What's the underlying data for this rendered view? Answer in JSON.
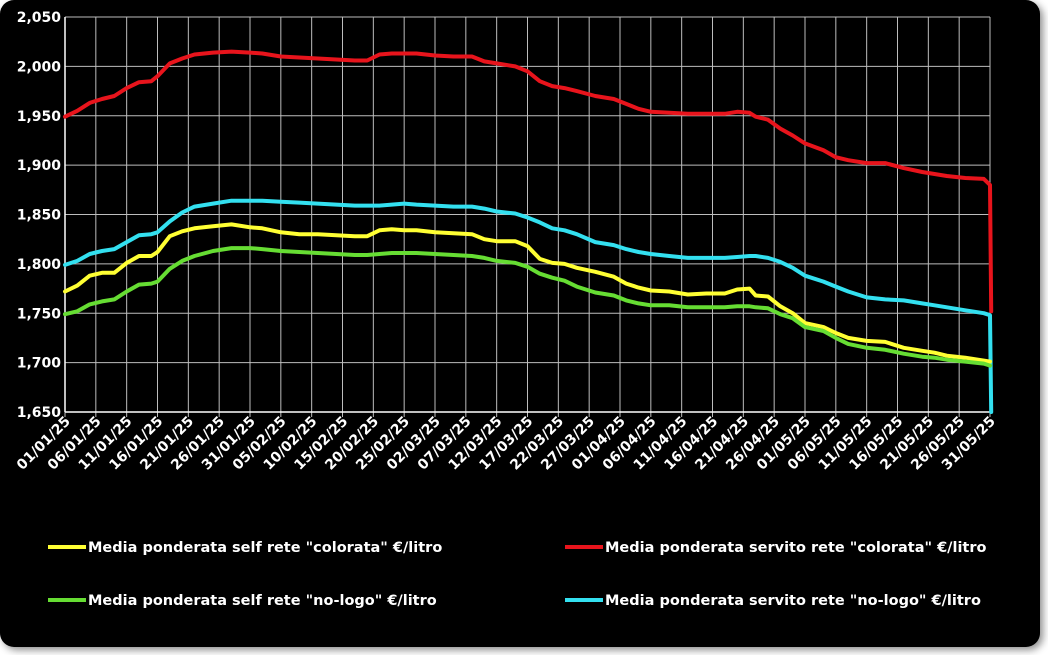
{
  "chart_data": {
    "type": "line",
    "title": "",
    "xlabel": "",
    "ylabel": "",
    "ylim": [
      1.65,
      2.05
    ],
    "grid": true,
    "legend_position": "bottom",
    "y_ticks": [
      "1,650",
      "1,700",
      "1,750",
      "1,800",
      "1,850",
      "1,900",
      "1,950",
      "2,000",
      "2,050"
    ],
    "x_ticks": [
      "01/01/25",
      "06/01/25",
      "11/01/25",
      "16/01/25",
      "21/01/25",
      "26/01/25",
      "31/01/25",
      "05/02/25",
      "10/02/25",
      "15/02/25",
      "20/02/25",
      "25/02/25",
      "02/03/25",
      "07/03/25",
      "12/03/25",
      "17/03/25",
      "22/03/25",
      "27/03/25",
      "01/04/25",
      "06/04/25",
      "11/04/25",
      "16/04/25",
      "21/04/25",
      "26/04/25",
      "01/05/25",
      "06/05/25",
      "11/05/25",
      "16/05/25",
      "21/05/25",
      "26/05/25",
      "31/05/25"
    ],
    "x_day_range": [
      0,
      150
    ],
    "series": [
      {
        "name": "Media ponderata self rete \"colorata\" €/litro",
        "color": "#ffff33",
        "points": [
          [
            0,
            1.772
          ],
          [
            2,
            1.778
          ],
          [
            4,
            1.788
          ],
          [
            6,
            1.791
          ],
          [
            8,
            1.791
          ],
          [
            10,
            1.801
          ],
          [
            12,
            1.808
          ],
          [
            14,
            1.808
          ],
          [
            15,
            1.812
          ],
          [
            17,
            1.828
          ],
          [
            19,
            1.833
          ],
          [
            21,
            1.836
          ],
          [
            24,
            1.838
          ],
          [
            27,
            1.84
          ],
          [
            30,
            1.837
          ],
          [
            32,
            1.836
          ],
          [
            35,
            1.832
          ],
          [
            38,
            1.83
          ],
          [
            41,
            1.83
          ],
          [
            44,
            1.829
          ],
          [
            47,
            1.828
          ],
          [
            49,
            1.828
          ],
          [
            51,
            1.834
          ],
          [
            53,
            1.835
          ],
          [
            55,
            1.834
          ],
          [
            57,
            1.834
          ],
          [
            60,
            1.832
          ],
          [
            63,
            1.831
          ],
          [
            66,
            1.83
          ],
          [
            68,
            1.825
          ],
          [
            70,
            1.823
          ],
          [
            73,
            1.823
          ],
          [
            75,
            1.818
          ],
          [
            77,
            1.805
          ],
          [
            79,
            1.801
          ],
          [
            81,
            1.8
          ],
          [
            83,
            1.796
          ],
          [
            86,
            1.792
          ],
          [
            89,
            1.787
          ],
          [
            91,
            1.78
          ],
          [
            93,
            1.776
          ],
          [
            95,
            1.773
          ],
          [
            98,
            1.772
          ],
          [
            101,
            1.769
          ],
          [
            104,
            1.77
          ],
          [
            107,
            1.77
          ],
          [
            109,
            1.774
          ],
          [
            111,
            1.775
          ],
          [
            112,
            1.768
          ],
          [
            114,
            1.767
          ],
          [
            116,
            1.757
          ],
          [
            118,
            1.75
          ],
          [
            120,
            1.74
          ],
          [
            123,
            1.736
          ],
          [
            125,
            1.73
          ],
          [
            127,
            1.725
          ],
          [
            130,
            1.722
          ],
          [
            133,
            1.721
          ],
          [
            136,
            1.715
          ],
          [
            139,
            1.712
          ],
          [
            141,
            1.71
          ],
          [
            143,
            1.707
          ],
          [
            146,
            1.705
          ],
          [
            149,
            1.702
          ],
          [
            150,
            1.701
          ]
        ]
      },
      {
        "name": "Media ponderata servito rete \"colorata\" €/litro",
        "color": "#e8141c",
        "points": [
          [
            0,
            1.949
          ],
          [
            2,
            1.955
          ],
          [
            4,
            1.963
          ],
          [
            6,
            1.967
          ],
          [
            8,
            1.97
          ],
          [
            10,
            1.978
          ],
          [
            12,
            1.984
          ],
          [
            14,
            1.985
          ],
          [
            15,
            1.99
          ],
          [
            17,
            2.003
          ],
          [
            19,
            2.008
          ],
          [
            21,
            2.012
          ],
          [
            24,
            2.014
          ],
          [
            27,
            2.015
          ],
          [
            30,
            2.014
          ],
          [
            32,
            2.013
          ],
          [
            35,
            2.01
          ],
          [
            38,
            2.009
          ],
          [
            41,
            2.008
          ],
          [
            44,
            2.007
          ],
          [
            47,
            2.006
          ],
          [
            49,
            2.006
          ],
          [
            51,
            2.012
          ],
          [
            53,
            2.013
          ],
          [
            55,
            2.013
          ],
          [
            57,
            2.013
          ],
          [
            60,
            2.011
          ],
          [
            63,
            2.01
          ],
          [
            66,
            2.01
          ],
          [
            68,
            2.005
          ],
          [
            70,
            2.003
          ],
          [
            73,
            2.0
          ],
          [
            75,
            1.995
          ],
          [
            77,
            1.985
          ],
          [
            79,
            1.98
          ],
          [
            81,
            1.978
          ],
          [
            83,
            1.975
          ],
          [
            86,
            1.97
          ],
          [
            89,
            1.967
          ],
          [
            91,
            1.962
          ],
          [
            93,
            1.957
          ],
          [
            95,
            1.954
          ],
          [
            98,
            1.953
          ],
          [
            101,
            1.952
          ],
          [
            104,
            1.952
          ],
          [
            107,
            1.952
          ],
          [
            109,
            1.954
          ],
          [
            111,
            1.953
          ],
          [
            112,
            1.949
          ],
          [
            114,
            1.946
          ],
          [
            116,
            1.937
          ],
          [
            118,
            1.93
          ],
          [
            120,
            1.922
          ],
          [
            123,
            1.915
          ],
          [
            125,
            1.908
          ],
          [
            127,
            1.905
          ],
          [
            130,
            1.902
          ],
          [
            133,
            1.902
          ],
          [
            136,
            1.897
          ],
          [
            139,
            1.893
          ],
          [
            141,
            1.891
          ],
          [
            143,
            1.889
          ],
          [
            146,
            1.887
          ],
          [
            149,
            1.886
          ],
          [
            150,
            1.88
          ],
          [
            150.2,
            1.752
          ]
        ]
      },
      {
        "name": "Media ponderata self rete \"no-logo\" €/litro",
        "color": "#66dd33",
        "points": [
          [
            0,
            1.749
          ],
          [
            2,
            1.752
          ],
          [
            4,
            1.759
          ],
          [
            6,
            1.762
          ],
          [
            8,
            1.764
          ],
          [
            10,
            1.772
          ],
          [
            12,
            1.779
          ],
          [
            14,
            1.78
          ],
          [
            15,
            1.782
          ],
          [
            17,
            1.795
          ],
          [
            19,
            1.803
          ],
          [
            21,
            1.808
          ],
          [
            24,
            1.813
          ],
          [
            27,
            1.816
          ],
          [
            30,
            1.816
          ],
          [
            32,
            1.815
          ],
          [
            35,
            1.813
          ],
          [
            38,
            1.812
          ],
          [
            41,
            1.811
          ],
          [
            44,
            1.81
          ],
          [
            47,
            1.809
          ],
          [
            49,
            1.809
          ],
          [
            51,
            1.81
          ],
          [
            53,
            1.811
          ],
          [
            55,
            1.811
          ],
          [
            57,
            1.811
          ],
          [
            60,
            1.81
          ],
          [
            63,
            1.809
          ],
          [
            66,
            1.808
          ],
          [
            68,
            1.806
          ],
          [
            70,
            1.803
          ],
          [
            73,
            1.801
          ],
          [
            75,
            1.797
          ],
          [
            77,
            1.79
          ],
          [
            79,
            1.786
          ],
          [
            81,
            1.783
          ],
          [
            83,
            1.777
          ],
          [
            86,
            1.771
          ],
          [
            89,
            1.768
          ],
          [
            91,
            1.763
          ],
          [
            93,
            1.76
          ],
          [
            95,
            1.758
          ],
          [
            98,
            1.758
          ],
          [
            101,
            1.756
          ],
          [
            104,
            1.756
          ],
          [
            107,
            1.756
          ],
          [
            109,
            1.757
          ],
          [
            111,
            1.757
          ],
          [
            112,
            1.756
          ],
          [
            114,
            1.755
          ],
          [
            116,
            1.749
          ],
          [
            118,
            1.745
          ],
          [
            120,
            1.736
          ],
          [
            123,
            1.732
          ],
          [
            125,
            1.725
          ],
          [
            127,
            1.719
          ],
          [
            130,
            1.715
          ],
          [
            133,
            1.713
          ],
          [
            136,
            1.709
          ],
          [
            139,
            1.706
          ],
          [
            141,
            1.705
          ],
          [
            143,
            1.703
          ],
          [
            146,
            1.701
          ],
          [
            149,
            1.699
          ],
          [
            150,
            1.697
          ]
        ]
      },
      {
        "name": "Media ponderata servito rete \"no-logo\" €/litro",
        "color": "#33e0f0",
        "points": [
          [
            0,
            1.799
          ],
          [
            2,
            1.803
          ],
          [
            4,
            1.81
          ],
          [
            6,
            1.813
          ],
          [
            8,
            1.815
          ],
          [
            10,
            1.822
          ],
          [
            12,
            1.829
          ],
          [
            14,
            1.83
          ],
          [
            15,
            1.832
          ],
          [
            17,
            1.843
          ],
          [
            19,
            1.852
          ],
          [
            21,
            1.858
          ],
          [
            24,
            1.861
          ],
          [
            27,
            1.864
          ],
          [
            30,
            1.864
          ],
          [
            32,
            1.864
          ],
          [
            35,
            1.863
          ],
          [
            38,
            1.862
          ],
          [
            41,
            1.861
          ],
          [
            44,
            1.86
          ],
          [
            47,
            1.859
          ],
          [
            49,
            1.859
          ],
          [
            51,
            1.859
          ],
          [
            53,
            1.86
          ],
          [
            55,
            1.861
          ],
          [
            57,
            1.86
          ],
          [
            60,
            1.859
          ],
          [
            63,
            1.858
          ],
          [
            66,
            1.858
          ],
          [
            68,
            1.856
          ],
          [
            70,
            1.853
          ],
          [
            73,
            1.851
          ],
          [
            75,
            1.847
          ],
          [
            77,
            1.842
          ],
          [
            79,
            1.836
          ],
          [
            81,
            1.834
          ],
          [
            83,
            1.83
          ],
          [
            86,
            1.822
          ],
          [
            89,
            1.819
          ],
          [
            91,
            1.815
          ],
          [
            93,
            1.812
          ],
          [
            95,
            1.81
          ],
          [
            98,
            1.808
          ],
          [
            101,
            1.806
          ],
          [
            104,
            1.806
          ],
          [
            107,
            1.806
          ],
          [
            109,
            1.807
          ],
          [
            111,
            1.808
          ],
          [
            112,
            1.808
          ],
          [
            114,
            1.806
          ],
          [
            116,
            1.802
          ],
          [
            118,
            1.796
          ],
          [
            120,
            1.788
          ],
          [
            123,
            1.782
          ],
          [
            125,
            1.777
          ],
          [
            127,
            1.772
          ],
          [
            130,
            1.766
          ],
          [
            133,
            1.764
          ],
          [
            136,
            1.763
          ],
          [
            139,
            1.76
          ],
          [
            141,
            1.758
          ],
          [
            143,
            1.756
          ],
          [
            146,
            1.753
          ],
          [
            149,
            1.75
          ],
          [
            150,
            1.748
          ],
          [
            150.2,
            1.65
          ]
        ]
      }
    ]
  },
  "legend": {
    "self_colorata": "Media ponderata self rete \"colorata\" €/litro",
    "servito_colorata": "Media ponderata servito rete \"colorata\" €/litro",
    "self_nologo": "Media ponderata self rete \"no-logo\" €/litro",
    "servito_nologo": "Media ponderata servito rete \"no-logo\" €/litro"
  }
}
